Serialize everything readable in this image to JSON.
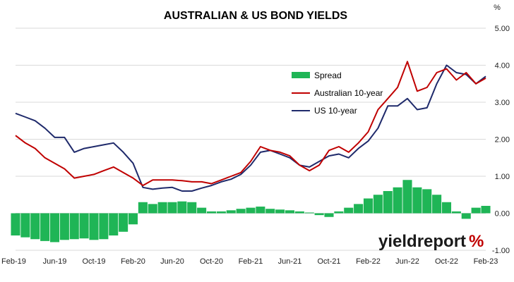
{
  "colors": {
    "spread": "#1fb556",
    "australian": "#c00000",
    "us": "#1f2a6b",
    "grid": "#d9d9d9",
    "brand_accent": "#c00000"
  },
  "brand": {
    "text": "yieldreport",
    "suffix": "%",
    "logo": "yieldreport-logo"
  },
  "chart_data": {
    "type": "line",
    "title": "AUSTRALIAN & US BOND YIELDS",
    "ylabel": "%",
    "xlabel": "",
    "ylim": [
      -1.0,
      5.0
    ],
    "y_ticks": [
      "-1.00",
      "0.00",
      "1.00",
      "2.00",
      "3.00",
      "4.00",
      "5.00"
    ],
    "y_tick_values": [
      -1,
      0,
      1,
      2,
      3,
      4,
      5
    ],
    "x_ticks": [
      "Feb-19",
      "Jun-19",
      "Oct-19",
      "Feb-20",
      "Jun-20",
      "Oct-20",
      "Feb-21",
      "Jun-21",
      "Oct-21",
      "Feb-22",
      "Jun-22",
      "Oct-22",
      "Feb-23"
    ],
    "x_tick_dates": [
      "2019-02",
      "2019-06",
      "2019-10",
      "2020-02",
      "2020-06",
      "2020-10",
      "2021-02",
      "2021-06",
      "2021-10",
      "2022-02",
      "2022-06",
      "2022-10",
      "2023-02"
    ],
    "grid": true,
    "legend_position": "top-right (inside plot)",
    "y_axis_side": "right",
    "series": [
      {
        "name": "Spread",
        "kind": "bar",
        "x": [
          "2019-02",
          "2019-03",
          "2019-04",
          "2019-05",
          "2019-06",
          "2019-07",
          "2019-08",
          "2019-09",
          "2019-10",
          "2019-11",
          "2019-12",
          "2020-01",
          "2020-02",
          "2020-03",
          "2020-04",
          "2020-05",
          "2020-06",
          "2020-07",
          "2020-08",
          "2020-09",
          "2020-10",
          "2020-11",
          "2020-12",
          "2021-01",
          "2021-02",
          "2021-03",
          "2021-04",
          "2021-05",
          "2021-06",
          "2021-07",
          "2021-08",
          "2021-09",
          "2021-10",
          "2021-11",
          "2021-12",
          "2022-01",
          "2022-02",
          "2022-03",
          "2022-04",
          "2022-05",
          "2022-06",
          "2022-07",
          "2022-08",
          "2022-09",
          "2022-10",
          "2022-11",
          "2022-12",
          "2023-01",
          "2023-02"
        ],
        "values": [
          -0.6,
          -0.65,
          -0.7,
          -0.75,
          -0.78,
          -0.72,
          -0.7,
          -0.68,
          -0.72,
          -0.7,
          -0.6,
          -0.5,
          -0.3,
          0.3,
          0.25,
          0.3,
          0.3,
          0.32,
          0.3,
          0.15,
          0.05,
          0.05,
          0.08,
          0.12,
          0.15,
          0.18,
          0.12,
          0.1,
          0.08,
          0.05,
          0.02,
          -0.05,
          -0.1,
          0.05,
          0.15,
          0.25,
          0.4,
          0.5,
          0.6,
          0.7,
          0.9,
          0.7,
          0.65,
          0.5,
          0.3,
          0.05,
          -0.15,
          0.15,
          0.2
        ]
      },
      {
        "name": "Australian 10-year",
        "kind": "line",
        "x": [
          "2019-02",
          "2019-03",
          "2019-04",
          "2019-05",
          "2019-06",
          "2019-07",
          "2019-08",
          "2019-09",
          "2019-10",
          "2019-11",
          "2019-12",
          "2020-01",
          "2020-02",
          "2020-03",
          "2020-04",
          "2020-05",
          "2020-06",
          "2020-07",
          "2020-08",
          "2020-09",
          "2020-10",
          "2020-11",
          "2020-12",
          "2021-01",
          "2021-02",
          "2021-03",
          "2021-04",
          "2021-05",
          "2021-06",
          "2021-07",
          "2021-08",
          "2021-09",
          "2021-10",
          "2021-11",
          "2021-12",
          "2022-01",
          "2022-02",
          "2022-03",
          "2022-04",
          "2022-05",
          "2022-06",
          "2022-07",
          "2022-08",
          "2022-09",
          "2022-10",
          "2022-11",
          "2022-12",
          "2023-01",
          "2023-02"
        ],
        "values": [
          2.1,
          1.9,
          1.75,
          1.5,
          1.35,
          1.2,
          0.95,
          1.0,
          1.05,
          1.15,
          1.25,
          1.1,
          0.95,
          0.75,
          0.9,
          0.9,
          0.9,
          0.88,
          0.85,
          0.85,
          0.8,
          0.9,
          1.0,
          1.1,
          1.4,
          1.8,
          1.7,
          1.65,
          1.55,
          1.3,
          1.15,
          1.3,
          1.7,
          1.8,
          1.65,
          1.9,
          2.2,
          2.8,
          3.1,
          3.4,
          4.1,
          3.3,
          3.4,
          3.8,
          3.9,
          3.6,
          3.8,
          3.5,
          3.65
        ]
      },
      {
        "name": "US 10-year",
        "kind": "line",
        "x": [
          "2019-02",
          "2019-03",
          "2019-04",
          "2019-05",
          "2019-06",
          "2019-07",
          "2019-08",
          "2019-09",
          "2019-10",
          "2019-11",
          "2019-12",
          "2020-01",
          "2020-02",
          "2020-03",
          "2020-04",
          "2020-05",
          "2020-06",
          "2020-07",
          "2020-08",
          "2020-09",
          "2020-10",
          "2020-11",
          "2020-12",
          "2021-01",
          "2021-02",
          "2021-03",
          "2021-04",
          "2021-05",
          "2021-06",
          "2021-07",
          "2021-08",
          "2021-09",
          "2021-10",
          "2021-11",
          "2021-12",
          "2022-01",
          "2022-02",
          "2022-03",
          "2022-04",
          "2022-05",
          "2022-06",
          "2022-07",
          "2022-08",
          "2022-09",
          "2022-10",
          "2022-11",
          "2022-12",
          "2023-01",
          "2023-02"
        ],
        "values": [
          2.7,
          2.6,
          2.5,
          2.3,
          2.05,
          2.05,
          1.65,
          1.75,
          1.8,
          1.85,
          1.9,
          1.65,
          1.35,
          0.7,
          0.65,
          0.68,
          0.7,
          0.6,
          0.6,
          0.68,
          0.75,
          0.85,
          0.92,
          1.05,
          1.3,
          1.65,
          1.7,
          1.6,
          1.5,
          1.3,
          1.25,
          1.4,
          1.55,
          1.6,
          1.5,
          1.75,
          1.95,
          2.3,
          2.9,
          2.9,
          3.1,
          2.8,
          2.85,
          3.5,
          4.0,
          3.8,
          3.75,
          3.5,
          3.7
        ]
      }
    ]
  }
}
